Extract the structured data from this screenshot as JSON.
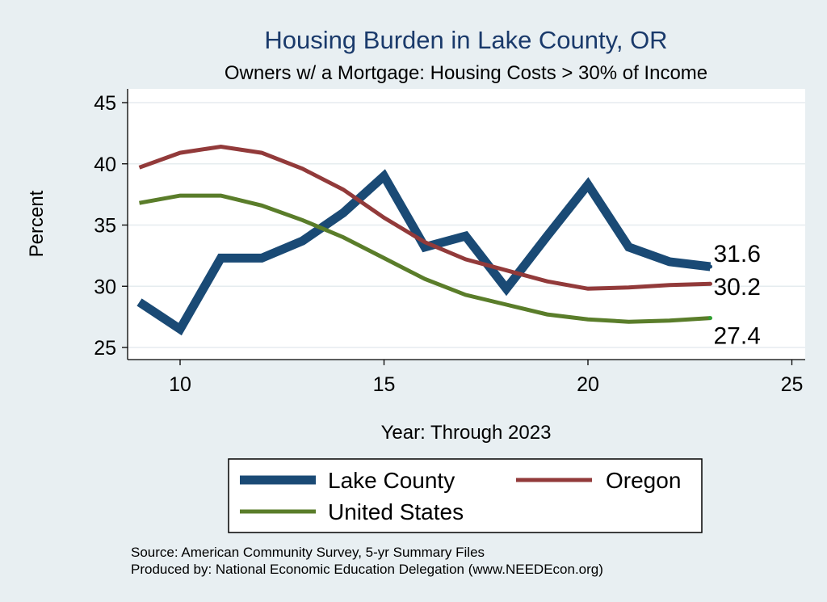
{
  "chart_data": {
    "type": "line",
    "title": "Housing Burden in Lake County, OR",
    "subtitle": "Owners w/ a Mortgage: Housing Costs > 30% of Income",
    "xlabel": "Year: Through 2023",
    "ylabel": "Percent",
    "xlim": [
      9,
      25
    ],
    "ylim": [
      24.5,
      46
    ],
    "xticks": [
      10,
      15,
      20,
      25
    ],
    "yticks": [
      25,
      30,
      35,
      40,
      45
    ],
    "x": [
      9,
      10,
      11,
      12,
      13,
      14,
      15,
      16,
      17,
      18,
      19,
      20,
      21,
      22,
      23
    ],
    "series": [
      {
        "name": "Lake County",
        "color": "#1a4a75",
        "values": [
          28.7,
          26.5,
          32.3,
          32.3,
          33.7,
          36.0,
          39.0,
          33.2,
          34.1,
          29.8,
          34.1,
          38.3,
          33.2,
          32.0,
          31.6
        ],
        "end_label": "31.6"
      },
      {
        "name": "Oregon",
        "color": "#923a3a",
        "values": [
          39.7,
          40.9,
          41.4,
          40.9,
          39.6,
          37.9,
          35.6,
          33.6,
          32.2,
          31.3,
          30.4,
          29.8,
          29.9,
          30.1,
          30.2
        ],
        "end_label": "30.2"
      },
      {
        "name": "United States",
        "color": "#5a7d2a",
        "values": [
          36.8,
          37.4,
          37.4,
          36.6,
          35.4,
          34.0,
          32.3,
          30.6,
          29.3,
          28.5,
          27.7,
          27.3,
          27.1,
          27.2,
          27.4
        ],
        "end_label": "27.4"
      }
    ],
    "legend_position": "bottom",
    "grid": true
  },
  "footer": {
    "source": "Source: American Community Survey, 5-yr Summary Files",
    "produced": "Produced by: National Economic Education Delegation (www.NEEDEcon.org)"
  }
}
